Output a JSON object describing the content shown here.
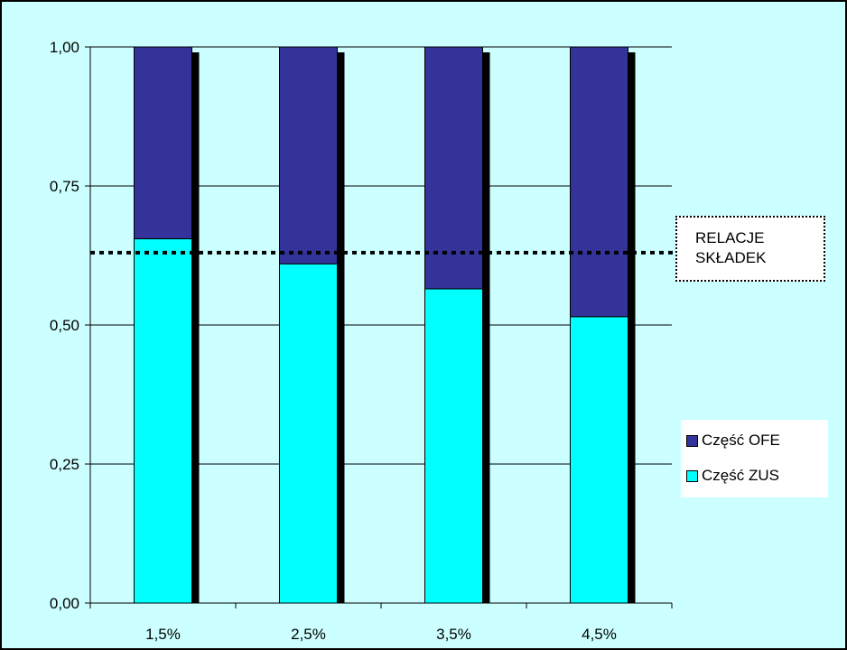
{
  "chart_data": {
    "type": "bar",
    "stacked": true,
    "categories": [
      "1,5%",
      "2,5%",
      "3,5%",
      "4,5%"
    ],
    "series": [
      {
        "name": "Część ZUS",
        "color": "#00ffff",
        "values": [
          0.655,
          0.61,
          0.565,
          0.515
        ]
      },
      {
        "name": "Część OFE",
        "color": "#333399",
        "values": [
          0.345,
          0.39,
          0.435,
          0.485
        ]
      }
    ],
    "ylim": [
      0,
      1
    ],
    "yticks": [
      "0,00",
      "0,25",
      "0,50",
      "0,75",
      "1,00"
    ],
    "ytick_values": [
      0,
      0.25,
      0.5,
      0.75,
      1.0
    ],
    "grid": true,
    "reference_line": {
      "value": 0.63,
      "label_lines": [
        "RELACJE",
        "SKŁADEK"
      ]
    },
    "legend": {
      "position": "right",
      "entries": [
        "Część OFE",
        "Część ZUS"
      ]
    },
    "background_color": "#ccffff"
  }
}
